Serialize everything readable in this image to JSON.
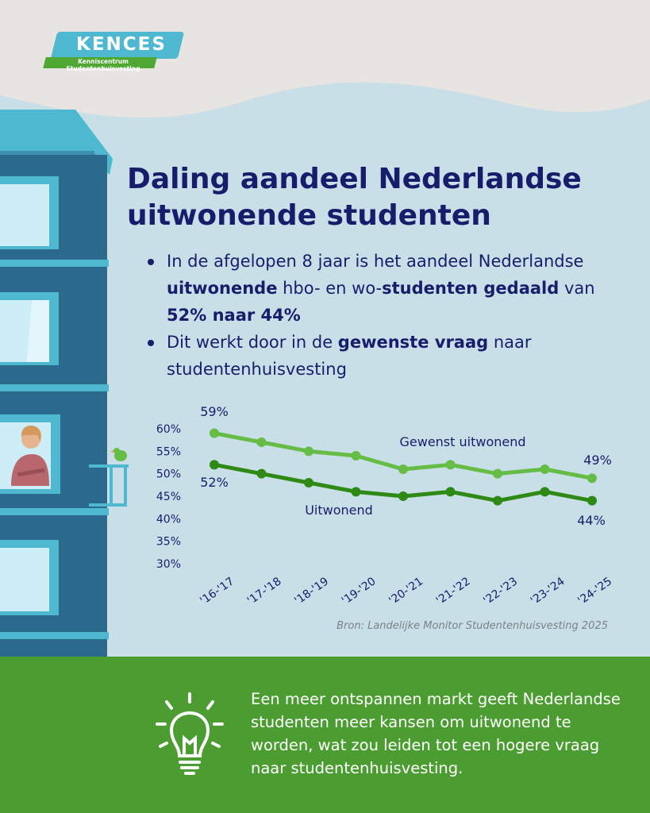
{
  "logo": {
    "name": "KENCES",
    "subtitle": "Kenniscentrum Studentenhuisvesting"
  },
  "title_lines": [
    "Daling aandeel Nederlandse",
    "uitwonende studenten"
  ],
  "bullets": [
    {
      "t1": "In de afgelopen 8 jaar is het aandeel Nederlandse ",
      "b1": "uitwonende",
      "t2": " hbo- en wo-",
      "b2": "studenten gedaald",
      "t3": " van ",
      "b3": "52% naar 44%"
    },
    {
      "t1": "Dit werkt door in de ",
      "b1": "gewenste vraag",
      "t2": " naar studentenhuisvesting"
    }
  ],
  "chart_data": {
    "type": "line",
    "categories": [
      "'16-'17",
      "'17-'18",
      "'18-'19",
      "'19-'20",
      "'20-'21",
      "'21-'22",
      "'22-'23",
      "'23-'24",
      "'24-'25"
    ],
    "series": [
      {
        "name": "Gewenst uitwonend",
        "values": [
          59,
          57,
          55,
          54,
          51,
          52,
          50,
          51,
          49
        ],
        "color": "#66bd45",
        "start_label": "59%",
        "end_label": "49%"
      },
      {
        "name": "Uitwonend",
        "values": [
          52,
          50,
          48,
          46,
          45,
          46,
          44,
          46,
          44
        ],
        "color": "#2e8a15",
        "start_label": "52%",
        "end_label": "44%"
      }
    ],
    "y_ticks": [
      "30%",
      "35%",
      "40%",
      "45%",
      "50%",
      "55%",
      "60%"
    ],
    "ylim": [
      30,
      60
    ],
    "grid": false
  },
  "source": "Bron: Landelijke Monitor Studentenhuisvesting 2025",
  "conclusion": "Een meer ontspannen markt geeft Nederlandse studenten meer kansen om uitwonend te worden, wat zou leiden tot een hogere vraag naar studentenhuisvesting.",
  "colors": {
    "navy": "#171c6b",
    "sky": "#c8dfe8",
    "top": "#e8e4e2",
    "bottom_bar": "#4c9d31",
    "building": "#2c6a8d",
    "window": "#4db8cf"
  }
}
